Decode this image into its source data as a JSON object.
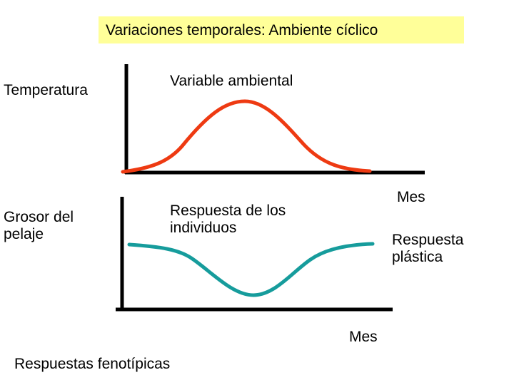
{
  "title": "Variaciones temporales: Ambiente cíclico",
  "labels": {
    "temperature": "Temperatura",
    "fur_thickness": "Grosor del\npelaje",
    "env_variable": "Variable ambiental",
    "individual_response": "Respuesta de los\nindividuos",
    "month_top": "Mes",
    "month_bottom": "Mes",
    "plastic_response": "Respuesta\nplástica",
    "phenotypic_responses": "Respuestas fenotípicas"
  },
  "colors": {
    "title_background": "#ffff99",
    "environment_curve": "#ee3a12",
    "response_curve": "#169c9c",
    "axes": "#000000"
  }
}
